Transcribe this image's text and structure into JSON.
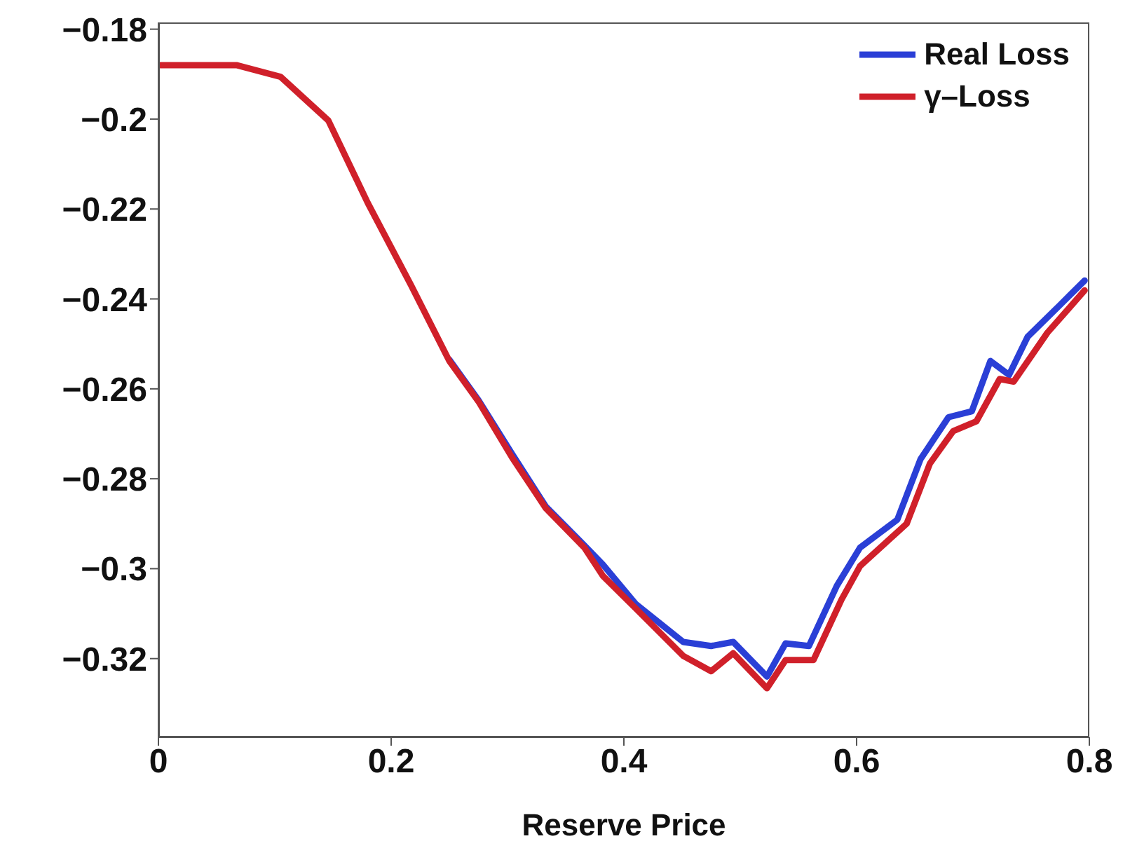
{
  "chart_data": {
    "type": "line",
    "xlabel": "Reserve Price",
    "xlim": [
      0,
      0.8
    ],
    "xticks": [
      0,
      0.2,
      0.4,
      0.6,
      0.8
    ],
    "ylim": [
      -0.3375,
      -0.1785
    ],
    "yticks": [
      -0.18,
      -0.2,
      -0.22,
      -0.24,
      -0.26,
      -0.28,
      -0.3,
      -0.32
    ],
    "grid": false,
    "legend": "top right",
    "marker": "none",
    "line_style": "solid",
    "series": [
      {
        "name": "Real Loss",
        "color": "#2a3fd6",
        "x": [
          0.25,
          0.275,
          0.304,
          0.333,
          0.366,
          0.382,
          0.41,
          0.451,
          0.475,
          0.494,
          0.523,
          0.539,
          0.559,
          0.583,
          0.603,
          0.635,
          0.655,
          0.679,
          0.699,
          0.715,
          0.731,
          0.747,
          0.775,
          0.796
        ],
        "values": [
          -0.2535,
          -0.2625,
          -0.2745,
          -0.2862,
          -0.2948,
          -0.2991,
          -0.3078,
          -0.3163,
          -0.3172,
          -0.3163,
          -0.324,
          -0.3166,
          -0.3172,
          -0.3038,
          -0.2953,
          -0.2891,
          -0.2756,
          -0.2663,
          -0.265,
          -0.2538,
          -0.2569,
          -0.2484,
          -0.2413,
          -0.2359
        ]
      },
      {
        "name": "γ–Loss",
        "color": "#d0202a",
        "x": [
          0,
          0.067,
          0.105,
          0.146,
          0.18,
          0.217,
          0.25,
          0.275,
          0.304,
          0.333,
          0.366,
          0.382,
          0.41,
          0.451,
          0.475,
          0.494,
          0.523,
          0.539,
          0.563,
          0.587,
          0.603,
          0.643,
          0.663,
          0.683,
          0.703,
          0.723,
          0.735,
          0.764,
          0.796
        ],
        "values": [
          -0.188,
          -0.188,
          -0.1906,
          -0.2003,
          -0.2187,
          -0.2369,
          -0.2538,
          -0.2628,
          -0.2753,
          -0.2866,
          -0.2953,
          -0.3016,
          -0.3088,
          -0.3194,
          -0.3228,
          -0.3188,
          -0.3266,
          -0.3203,
          -0.3203,
          -0.3069,
          -0.2994,
          -0.29,
          -0.2766,
          -0.2694,
          -0.2672,
          -0.2578,
          -0.2584,
          -0.2475,
          -0.2381
        ]
      }
    ]
  }
}
